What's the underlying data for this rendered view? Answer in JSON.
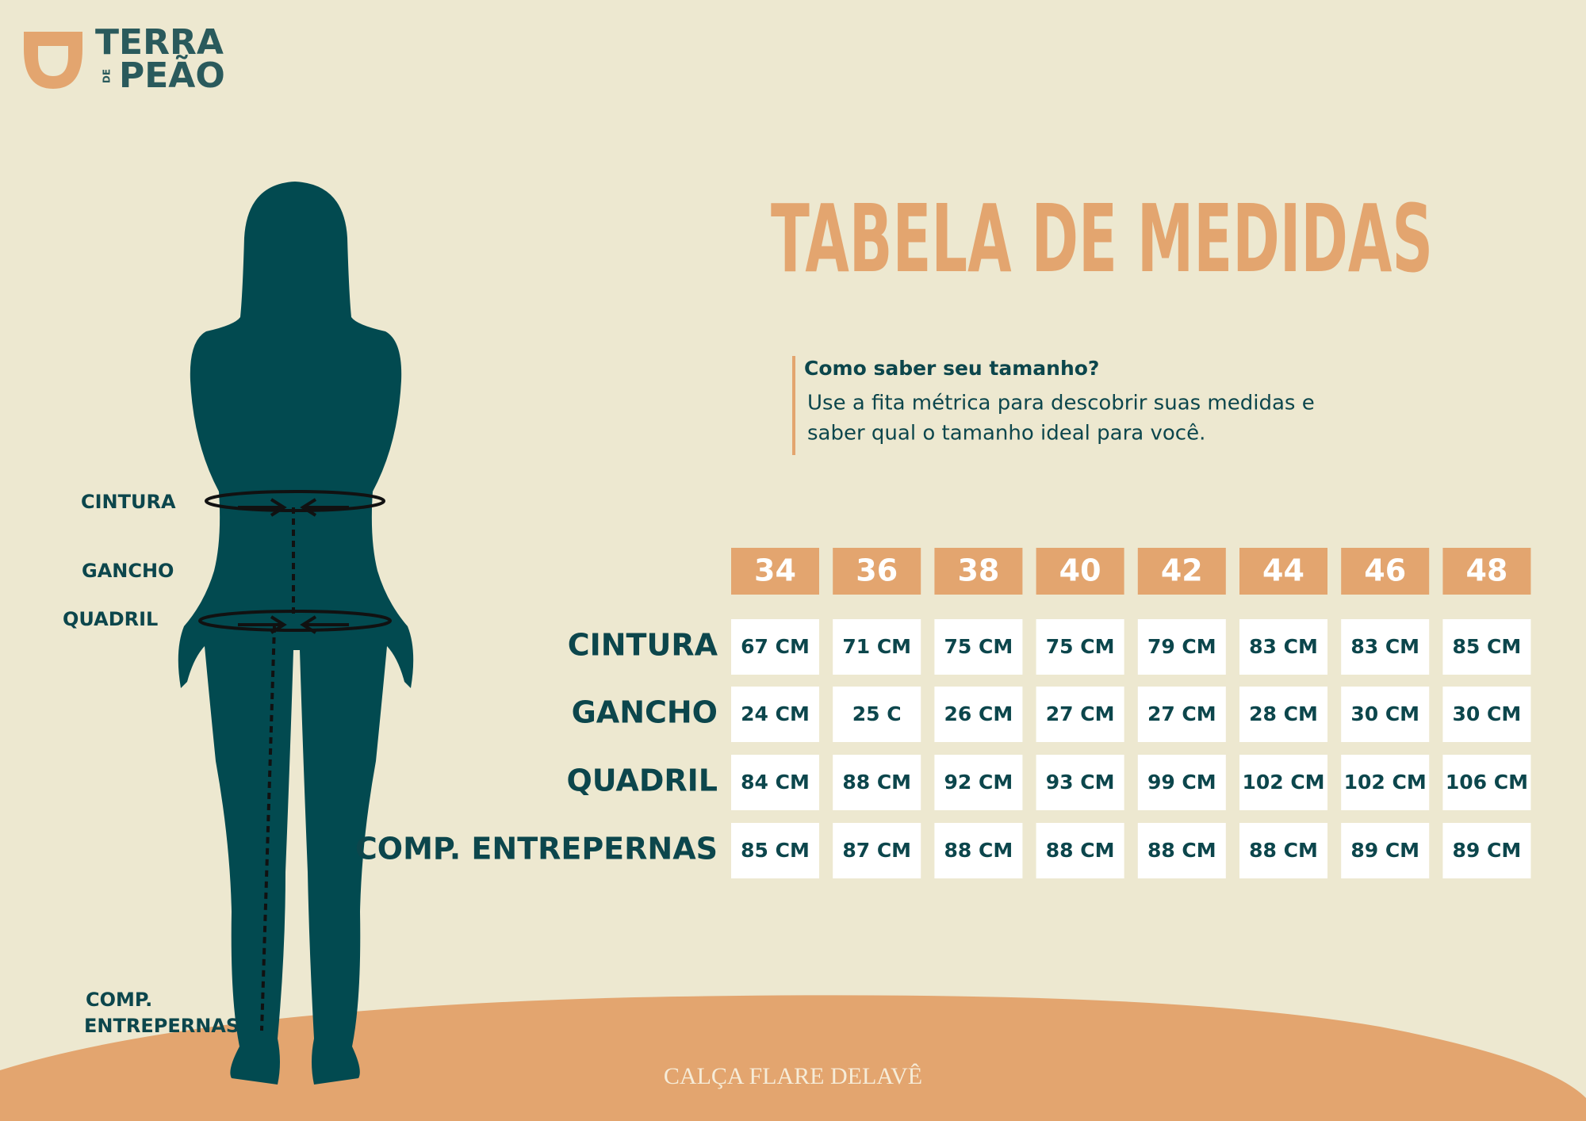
{
  "logo": {
    "line1": "TERRA",
    "small": "DE",
    "line2": "PEÃO"
  },
  "header": {
    "title": "TABELA DE MEDIDAS"
  },
  "tip": {
    "heading": "Como saber seu tamanho?",
    "lines": [
      "Use a fita métrica para descobrir suas medidas e",
      "saber qual o tamanho ideal para você."
    ]
  },
  "figure": {
    "labels": [
      "CINTURA",
      "GANCHO",
      "QUADRIL"
    ],
    "inseam_label": [
      "COMP.",
      "ENTREPERNAS"
    ]
  },
  "table": {
    "sizes": [
      "34",
      "36",
      "38",
      "40",
      "42",
      "44",
      "46",
      "48"
    ],
    "rows": [
      {
        "label": "CINTURA",
        "cells": [
          "67 CM",
          "71 CM",
          "75 CM",
          "75 CM",
          "79 CM",
          "83 CM",
          "83 CM",
          "85 CM"
        ]
      },
      {
        "label": "GANCHO",
        "cells": [
          "24 CM",
          "25 C",
          "26 CM",
          "27 CM",
          "27 CM",
          "28 CM",
          "30 CM",
          "30 CM"
        ]
      },
      {
        "label": "QUADRIL",
        "cells": [
          "84 CM",
          "88 CM",
          "92 CM",
          "93 CM",
          "99 CM",
          "102 CM",
          "102 CM",
          "106 CM"
        ]
      },
      {
        "label": "COMP. ENTREPERNAS",
        "cells": [
          "85 CM",
          "87 CM",
          "88 CM",
          "88 CM",
          "88 CM",
          "88 CM",
          "89 CM",
          "89 CM"
        ]
      }
    ]
  },
  "footer": {
    "product": "CALÇA FLARE DELAVÊ"
  }
}
